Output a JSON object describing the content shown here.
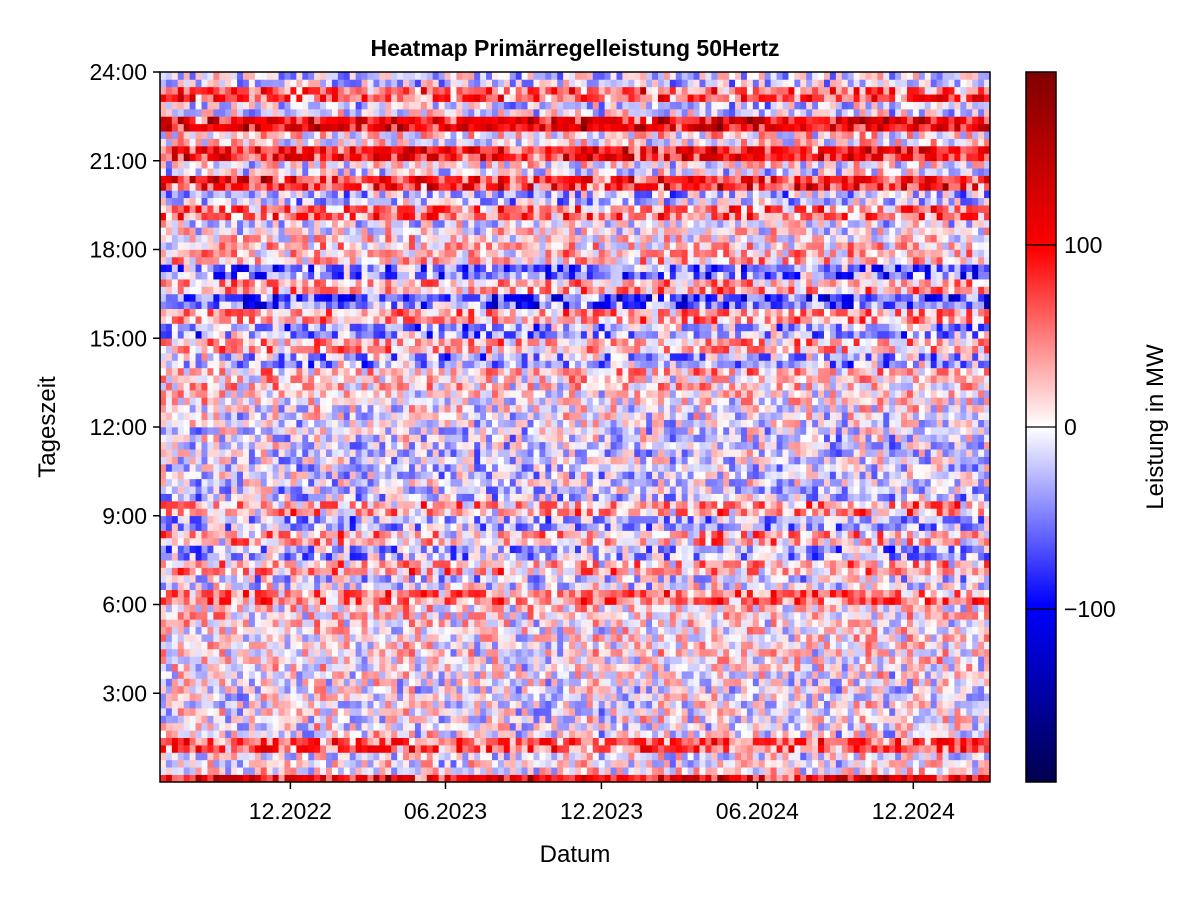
{
  "chart_data": {
    "type": "heatmap",
    "title": "Heatmap Primärregelleistung 50Hertz",
    "xlabel": "Datum",
    "ylabel": "Tageszeit",
    "colorbar_label": "Leistung in MW",
    "x_range": [
      "2022-07",
      "2025-03"
    ],
    "x_ticks": [
      {
        "date": "2022-12-01",
        "label": "12.2022"
      },
      {
        "date": "2023-06-01",
        "label": "06.2023"
      },
      {
        "date": "2023-12-01",
        "label": "12.2023"
      },
      {
        "date": "2024-06-01",
        "label": "06.2024"
      },
      {
        "date": "2024-12-01",
        "label": "12.2024"
      }
    ],
    "y_range_hours": [
      0,
      24
    ],
    "y_ticks": [
      {
        "hour": 3,
        "label": "3:00"
      },
      {
        "hour": 6,
        "label": "6:00"
      },
      {
        "hour": 9,
        "label": "9:00"
      },
      {
        "hour": 12,
        "label": "12:00"
      },
      {
        "hour": 15,
        "label": "15:00"
      },
      {
        "hour": 18,
        "label": "18:00"
      },
      {
        "hour": 21,
        "label": "21:00"
      },
      {
        "hour": 24,
        "label": "24:00"
      }
    ],
    "color_range": [
      -195,
      195
    ],
    "colormap": [
      "#00004d",
      "#0000ff",
      "#ffffff",
      "#ff0000",
      "#7f0000"
    ],
    "colorbar_ticks": [
      {
        "value": -100,
        "label": "−100"
      },
      {
        "value": 0,
        "label": "0"
      },
      {
        "value": 100,
        "label": "100"
      }
    ],
    "hourly_profile_mw": [
      {
        "hour": 0,
        "value": 10
      },
      {
        "hour": 1,
        "value": -5
      },
      {
        "hour": 2,
        "value": 0
      },
      {
        "hour": 3,
        "value": -8
      },
      {
        "hour": 4,
        "value": 5
      },
      {
        "hour": 5,
        "value": 8
      },
      {
        "hour": 6,
        "value": 12
      },
      {
        "hour": 7,
        "value": -20
      },
      {
        "hour": 8,
        "value": -35
      },
      {
        "hour": 9,
        "value": -30
      },
      {
        "hour": 10,
        "value": -12
      },
      {
        "hour": 11,
        "value": -15
      },
      {
        "hour": 12,
        "value": -10
      },
      {
        "hour": 13,
        "value": 8
      },
      {
        "hour": 14,
        "value": 25
      },
      {
        "hour": 15,
        "value": 30
      },
      {
        "hour": 16,
        "value": 35
      },
      {
        "hour": 17,
        "value": 30
      },
      {
        "hour": 18,
        "value": 20
      },
      {
        "hour": 19,
        "value": -10
      },
      {
        "hour": 20,
        "value": -30
      },
      {
        "hour": 21,
        "value": 5
      },
      {
        "hour": 22,
        "value": 10
      },
      {
        "hour": 23,
        "value": -15
      }
    ],
    "notable_bands": [
      {
        "hour": 23.2,
        "value": 80
      },
      {
        "hour": 22.3,
        "value": 110
      },
      {
        "hour": 21.2,
        "value": 90
      },
      {
        "hour": 20.3,
        "value": 110
      },
      {
        "hour": 19.2,
        "value": 70
      },
      {
        "hour": 17.2,
        "value": -80
      },
      {
        "hour": 16.2,
        "value": -100
      },
      {
        "hour": 15.3,
        "value": -70
      },
      {
        "hour": 14.3,
        "value": -60
      },
      {
        "hour": 9.2,
        "value": 60
      },
      {
        "hour": 8.2,
        "value": 60
      },
      {
        "hour": 7.2,
        "value": 55
      },
      {
        "hour": 6.3,
        "value": 50
      },
      {
        "hour": 1.2,
        "value": 70
      },
      {
        "hour": 0.1,
        "value": 100
      }
    ]
  }
}
